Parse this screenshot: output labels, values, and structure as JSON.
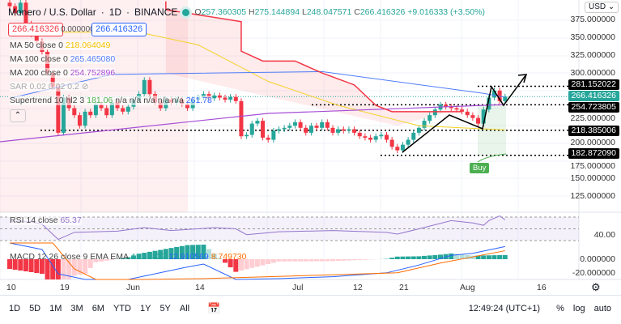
{
  "header": {
    "symbol": "Monero / U.S. Dollar",
    "interval": "1D",
    "exchange": "BINANCE",
    "open": "257.360305",
    "high": "275.144894",
    "low": "248.047571",
    "close": "266.416326",
    "change": "+9.016333 (+3.50%)",
    "sell_price": "266.416326",
    "spread": "0.000000",
    "buy_price": "266.416326"
  },
  "indicators": {
    "ma50": {
      "label": "MA 50 close 0",
      "value": "218.064049",
      "color": "#f5d327"
    },
    "ma100": {
      "label": "MA 100 close 0",
      "value": "265.465080",
      "color": "#4f7df9"
    },
    "ma200": {
      "label": "MA 200 close 0",
      "value": "254.752896",
      "color": "#a64cd6"
    },
    "sar": {
      "label": "SAR 0.02 0.02 0.2"
    },
    "supertrend": {
      "label": "Supertrend 10 hl2 3",
      "value1": "181.06",
      "na": "n/a n/a n/a n/a n/a",
      "value2": "261.78",
      "color": "#f23645"
    },
    "rsi": {
      "label": "RSI 14 close",
      "value": "65.37",
      "color": "#9575cd"
    },
    "macd": {
      "label": "MACD 12 26 close 9 EMA EMA",
      "hist": "4.160839",
      "macd": "12.910569",
      "signal": "8.749730"
    }
  },
  "price_axis": {
    "currency": "USD",
    "ticks": [
      "375.000000",
      "350.000000",
      "325.000000",
      "300.000000",
      "225.000000",
      "200.000000",
      "175.000000",
      "150.000000",
      "125.000000"
    ],
    "levels": [
      {
        "value": "281.152022"
      },
      {
        "value": "266.416326",
        "current": true
      },
      {
        "value": "254.723805"
      },
      {
        "value": "218.385006"
      },
      {
        "value": "182.872090"
      }
    ],
    "rsi_tick": "40.00",
    "macd_ticks": [
      "0.000000",
      "-20.000000"
    ]
  },
  "time_axis": [
    "10",
    "19",
    "Jun",
    "14",
    "Jul",
    "12",
    "21",
    "Aug",
    "16"
  ],
  "buy_label": "Buy",
  "toolbar": {
    "ranges": [
      "1D",
      "5D",
      "1M",
      "3M",
      "6M",
      "YTD",
      "1Y",
      "5Y",
      "All"
    ],
    "clock": "12:49:24 (UTC+1)",
    "percent": "%",
    "log": "log",
    "auto": "auto"
  },
  "chart_data": {
    "type": "candlestick",
    "start_date": "May 10",
    "closes": [
      395,
      385,
      400,
      370,
      355,
      345,
      330,
      300,
      280,
      215,
      265,
      250,
      240,
      225,
      245,
      240,
      255,
      250,
      240,
      258,
      250,
      245,
      252,
      262,
      270,
      290,
      270,
      258,
      250,
      262,
      258,
      262,
      256,
      250,
      262,
      265,
      270,
      264,
      268,
      265,
      262,
      266,
      260,
      210,
      212,
      228,
      232,
      208,
      205,
      218,
      220,
      222,
      225,
      230,
      222,
      215,
      225,
      222,
      230,
      222,
      215,
      220,
      218,
      220,
      215,
      210,
      208,
      205,
      210,
      212,
      205,
      195,
      190,
      198,
      205,
      215,
      222,
      232,
      240,
      248,
      255,
      252,
      250,
      248,
      245,
      240,
      236,
      228,
      248,
      265,
      275,
      260,
      266.42
    ],
    "ylim": [
      112,
      402
    ],
    "ma50": [
      [
        0,
        358
      ],
      [
        24,
        358
      ],
      [
        35,
        340
      ],
      [
        48,
        288
      ],
      [
        61,
        254
      ],
      [
        76,
        225
      ],
      [
        92,
        219
      ]
    ],
    "ma100": [
      [
        0,
        264
      ],
      [
        19,
        298
      ],
      [
        58,
        302
      ],
      [
        88,
        271
      ],
      [
        92,
        265.5
      ]
    ],
    "ma200": [
      [
        -2,
        202
      ],
      [
        48,
        242.5
      ],
      [
        92,
        255
      ]
    ],
    "supertrend": [
      [
        29,
        402
      ],
      [
        29,
        390
      ],
      [
        43,
        373
      ],
      [
        43,
        331
      ],
      [
        47,
        317
      ],
      [
        53,
        317
      ],
      [
        58,
        300
      ],
      [
        64,
        283
      ],
      [
        68,
        254
      ],
      [
        71,
        245
      ],
      [
        84,
        245
      ]
    ],
    "rsi": [
      [
        0,
        62
      ],
      [
        4,
        62
      ],
      [
        6,
        58
      ],
      [
        9,
        32
      ],
      [
        12,
        44
      ],
      [
        20,
        46
      ],
      [
        25,
        52
      ],
      [
        30,
        47
      ],
      [
        38,
        52
      ],
      [
        42,
        50
      ],
      [
        44,
        40
      ],
      [
        50,
        45
      ],
      [
        60,
        47
      ],
      [
        70,
        44
      ],
      [
        72,
        41
      ],
      [
        76,
        50
      ],
      [
        82,
        64
      ],
      [
        86,
        60
      ],
      [
        88,
        56
      ],
      [
        89,
        64
      ],
      [
        91,
        72
      ],
      [
        92,
        65.37
      ]
    ],
    "macd": [
      [
        0,
        30
      ],
      [
        6,
        10
      ],
      [
        9,
        -15
      ],
      [
        14,
        -35
      ],
      [
        22,
        -28
      ],
      [
        33,
        -8
      ],
      [
        36,
        -5
      ],
      [
        42,
        -32
      ],
      [
        50,
        -20
      ],
      [
        60,
        -18
      ],
      [
        70,
        -14
      ],
      [
        76,
        -6
      ],
      [
        82,
        4
      ],
      [
        86,
        6
      ],
      [
        92,
        13
      ]
    ],
    "signal": [
      [
        0,
        40
      ],
      [
        8,
        20
      ],
      [
        12,
        -10
      ],
      [
        16,
        -30
      ],
      [
        24,
        -30
      ],
      [
        36,
        -20
      ],
      [
        48,
        -18
      ],
      [
        60,
        -16
      ],
      [
        72,
        -14
      ],
      [
        80,
        -4
      ],
      [
        92,
        8.7
      ]
    ]
  }
}
